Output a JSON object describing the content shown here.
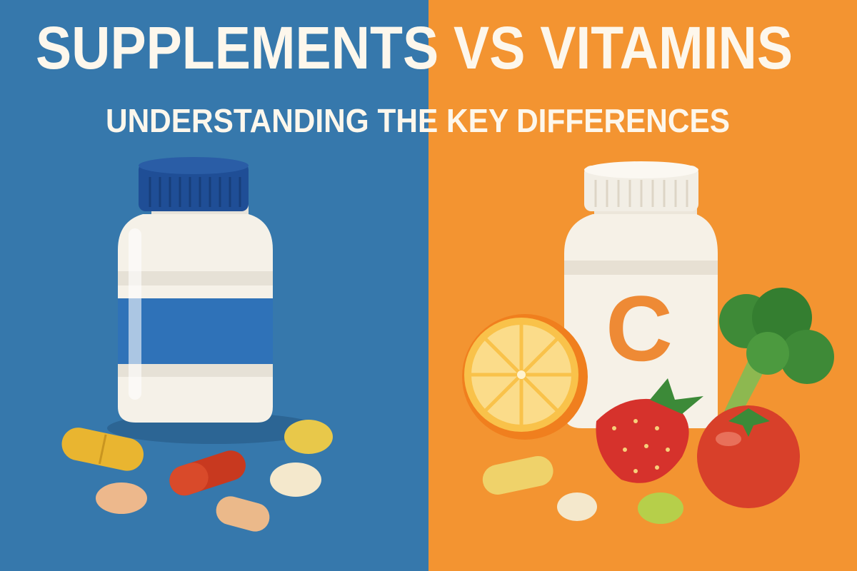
{
  "title": "SUPPLEMENTS VS VITAMINS",
  "subtitle": "UNDERSTANDING THE KEY DIFFERENCES",
  "vitamin_label": "C",
  "colors": {
    "left_background": "#3678AC",
    "right_background": "#F39431",
    "title_text": "#FDF7EC",
    "supplement_cap": "#1F4E96",
    "supplement_band": "#2F72B8",
    "vitamin_letter": "#EE8A35"
  },
  "icons": [
    "supplement-bottle",
    "pills",
    "vitamin-c-bottle",
    "orange-slice",
    "strawberry",
    "broccoli",
    "tomato"
  ]
}
